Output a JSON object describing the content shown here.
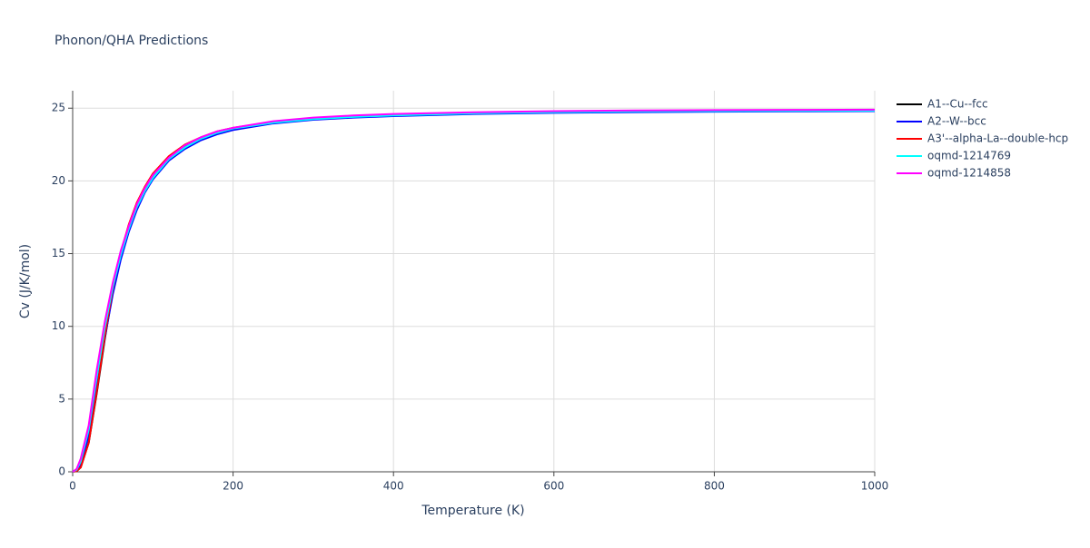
{
  "chart_data": {
    "type": "line",
    "title": "Phonon/QHA Predictions",
    "xlabel": "Temperature (K)",
    "ylabel": "Cv (J/K/mol)",
    "x": [
      0,
      5,
      10,
      20,
      30,
      40,
      50,
      60,
      70,
      80,
      90,
      100,
      120,
      140,
      160,
      180,
      200,
      250,
      300,
      350,
      400,
      500,
      600,
      700,
      800,
      900,
      1000
    ],
    "series": [
      {
        "name": "A1--Cu--fcc",
        "color": "#000000",
        "values": [
          0,
          0.05,
          0.3,
          2.0,
          5.4,
          9.1,
          12.4,
          14.9,
          16.8,
          18.3,
          19.5,
          20.4,
          21.6,
          22.4,
          22.95,
          23.35,
          23.6,
          24.0,
          24.25,
          24.4,
          24.5,
          24.64,
          24.72,
          24.76,
          24.79,
          24.81,
          24.82
        ]
      },
      {
        "name": "A2--W--bcc",
        "color": "#0000ff",
        "values": [
          0,
          0.1,
          0.5,
          2.5,
          5.8,
          9.2,
          12.2,
          14.6,
          16.5,
          18.0,
          19.2,
          20.1,
          21.4,
          22.2,
          22.8,
          23.2,
          23.5,
          23.95,
          24.2,
          24.35,
          24.45,
          24.6,
          24.68,
          24.73,
          24.76,
          24.78,
          24.8
        ]
      },
      {
        "name": "A3'--alpha-La--double-hcp",
        "color": "#ff0000",
        "values": [
          0,
          0.05,
          0.3,
          2.0,
          5.5,
          9.3,
          12.6,
          15.1,
          17.0,
          18.5,
          19.6,
          20.5,
          21.7,
          22.5,
          23.0,
          23.4,
          23.65,
          24.05,
          24.3,
          24.45,
          24.55,
          24.68,
          24.75,
          24.8,
          24.82,
          24.84,
          24.85
        ]
      },
      {
        "name": "oqmd-1214769",
        "color": "#00ffff",
        "values": [
          0,
          0.15,
          0.7,
          2.9,
          6.5,
          9.9,
          12.7,
          14.9,
          16.7,
          18.2,
          19.3,
          20.2,
          21.5,
          22.3,
          22.9,
          23.3,
          23.6,
          24.0,
          24.25,
          24.4,
          24.5,
          24.65,
          24.73,
          24.78,
          24.8,
          24.82,
          24.83
        ]
      },
      {
        "name": "oqmd-1214858",
        "color": "#ff00ff",
        "values": [
          0,
          0.2,
          0.9,
          3.2,
          7.0,
          10.3,
          13.0,
          15.2,
          16.9,
          18.4,
          19.5,
          20.4,
          21.6,
          22.45,
          23.0,
          23.4,
          23.65,
          24.1,
          24.35,
          24.5,
          24.6,
          24.72,
          24.8,
          24.84,
          24.87,
          24.88,
          24.9
        ]
      }
    ],
    "xlim": [
      0,
      1000
    ],
    "xticks": [
      0,
      200,
      400,
      600,
      800,
      1000
    ],
    "ylim": [
      0,
      26.2
    ],
    "yticks": [
      0,
      5,
      10,
      15,
      20,
      25
    ],
    "grid": true,
    "legend": "right"
  }
}
